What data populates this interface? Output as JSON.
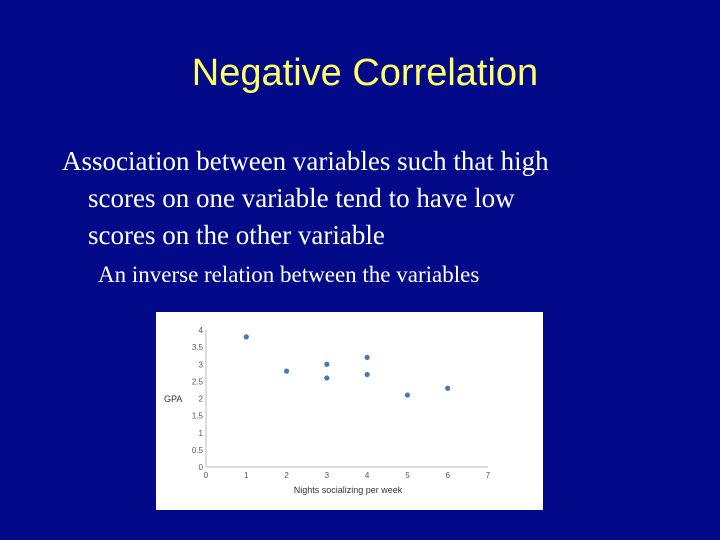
{
  "slide": {
    "title": "Negative Correlation",
    "bullet_lines": [
      "Association between variables such that high",
      "scores on one variable tend to have low",
      "scores on the other variable"
    ],
    "sub_bullet": "An inverse relation between the variables"
  },
  "colors": {
    "background": "#020a8a",
    "title": "#ffff66",
    "text": "#ffffff",
    "point": "#4a78b5"
  },
  "chart_data": {
    "type": "scatter",
    "xlabel": "Nights socializing per week",
    "ylabel": "GPA",
    "xlim": [
      0,
      7
    ],
    "ylim": [
      0,
      4
    ],
    "xticks": [
      "0",
      "1",
      "2",
      "3",
      "4",
      "5",
      "6",
      "7"
    ],
    "yticks": [
      "0",
      "0.5",
      "1",
      "1.5",
      "2",
      "2.5",
      "3",
      "3.5",
      "4"
    ],
    "grid": false,
    "points": [
      {
        "x": 1,
        "y": 3.8
      },
      {
        "x": 2,
        "y": 2.8
      },
      {
        "x": 3,
        "y": 3.0
      },
      {
        "x": 3,
        "y": 2.6
      },
      {
        "x": 4,
        "y": 3.2
      },
      {
        "x": 4,
        "y": 2.7
      },
      {
        "x": 5,
        "y": 2.1
      },
      {
        "x": 6,
        "y": 2.3
      }
    ]
  }
}
